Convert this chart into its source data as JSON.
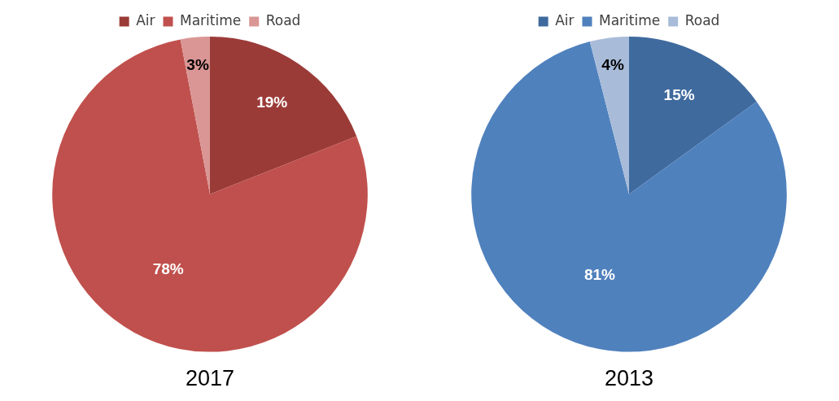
{
  "chart_data": [
    {
      "type": "pie",
      "title": "2017",
      "categories": [
        "Air",
        "Maritime",
        "Road"
      ],
      "values": [
        19,
        78,
        3
      ],
      "value_labels": [
        "19%",
        "78%",
        "3%"
      ],
      "colors": [
        "#9b3b38",
        "#c0504d",
        "#d99694"
      ],
      "legend": "top"
    },
    {
      "type": "pie",
      "title": "2013",
      "categories": [
        "Air",
        "Maritime",
        "Road"
      ],
      "values": [
        15,
        81,
        4
      ],
      "value_labels": [
        "15%",
        "81%",
        "4%"
      ],
      "colors": [
        "#3f6a9e",
        "#4f81bd",
        "#a8bcd9"
      ],
      "legend": "top"
    }
  ]
}
